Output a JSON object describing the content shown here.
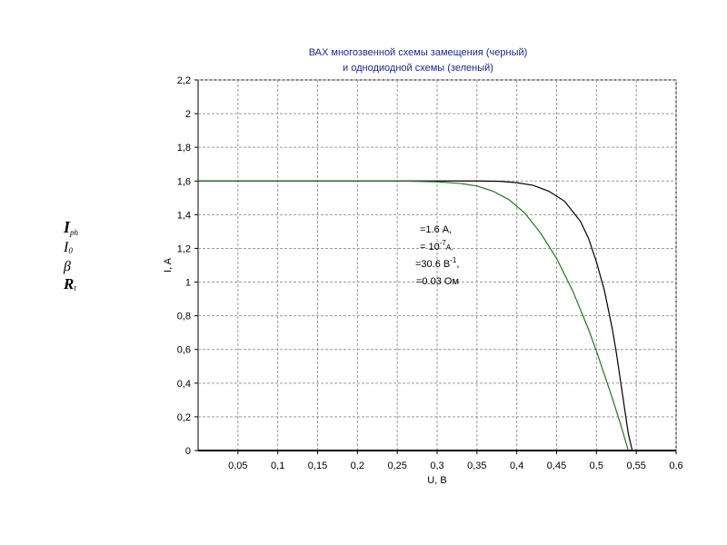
{
  "chart_data": {
    "type": "line",
    "title_line1": "ВАХ многозвенной схемы замещения (черный)",
    "title_line2": "и однодиодной схемы (зеленый)",
    "xlabel": "U, В",
    "ylabel": "I, A",
    "xlim": [
      0,
      0.6
    ],
    "ylim": [
      0,
      2.2
    ],
    "x_ticks": [
      "0,05",
      "0,1",
      "0,15",
      "0,2",
      "0,25",
      "0,3",
      "0,35",
      "0,4",
      "0,45",
      "0,5",
      "0,55",
      "0,6"
    ],
    "y_ticks": [
      "0",
      "0,2",
      "0,4",
      "0,6",
      "0,8",
      "1",
      "1,2",
      "1,4",
      "1,6",
      "1,8",
      "2",
      "2,2"
    ],
    "grid": true,
    "series": [
      {
        "color": "#000000",
        "x": [
          0,
          0.1,
          0.2,
          0.3,
          0.35,
          0.38,
          0.4,
          0.42,
          0.44,
          0.46,
          0.48,
          0.49,
          0.5,
          0.51,
          0.52,
          0.525,
          0.53,
          0.535,
          0.54,
          0.545
        ],
        "y": [
          1.6,
          1.6,
          1.6,
          1.6,
          1.6,
          1.598,
          1.59,
          1.575,
          1.54,
          1.48,
          1.36,
          1.26,
          1.12,
          0.95,
          0.72,
          0.58,
          0.42,
          0.26,
          0.1,
          0.0
        ]
      },
      {
        "color": "#1e7a1e",
        "x": [
          0,
          0.1,
          0.2,
          0.25,
          0.3,
          0.33,
          0.35,
          0.37,
          0.39,
          0.41,
          0.43,
          0.45,
          0.47,
          0.49,
          0.5,
          0.51,
          0.52,
          0.53,
          0.54
        ],
        "y": [
          1.6,
          1.6,
          1.6,
          1.6,
          1.595,
          1.585,
          1.57,
          1.54,
          1.49,
          1.41,
          1.29,
          1.14,
          0.95,
          0.72,
          0.59,
          0.45,
          0.31,
          0.16,
          0.0
        ]
      }
    ],
    "annotations": [
      "=1.6 А,",
      "= 10",
      "-7",
      "А,",
      "=30.6 В",
      "-1",
      ",",
      "=0.03 Ом"
    ],
    "symbols": [
      "I",
      "ph",
      "I",
      "0",
      "β",
      "R",
      "t"
    ]
  }
}
